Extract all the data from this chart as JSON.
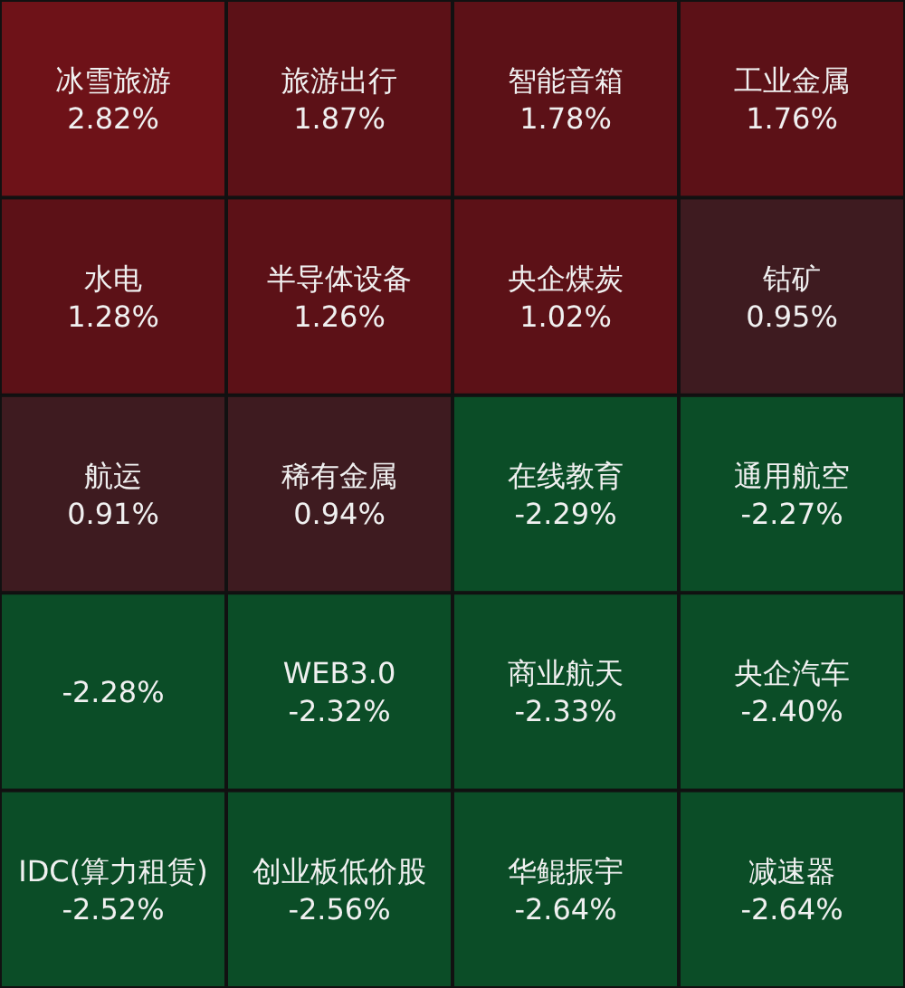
{
  "chart_data": {
    "type": "other",
    "categories": [
      "冰雪旅游",
      "旅游出行",
      "智能音箱",
      "工业金属",
      "水电",
      "半导体设备",
      "央企煤炭",
      "钴矿",
      "航运",
      "稀有金属",
      "在线教育",
      "通用航空",
      null,
      "WEB3.0",
      "商业航天",
      "央企汽车",
      "IDC(算力租赁)",
      "创业板低价股",
      "华鲲振宇",
      "减速器"
    ],
    "values": [
      2.82,
      1.87,
      1.78,
      1.76,
      1.28,
      1.26,
      1.02,
      0.95,
      0.91,
      0.94,
      -2.29,
      -2.27,
      -2.28,
      -2.32,
      -2.33,
      -2.4,
      -2.52,
      -2.56,
      -2.64,
      -2.64
    ],
    "value_labels": [
      "2.82%",
      "1.87%",
      "1.78%",
      "1.76%",
      "1.28%",
      "1.26%",
      "1.02%",
      "0.95%",
      "0.91%",
      "0.94%",
      "-2.29%",
      "-2.27%",
      "-2.28%",
      "-2.32%",
      "-2.33%",
      "-2.40%",
      "-2.52%",
      "-2.56%",
      "-2.64%",
      "-2.64%"
    ]
  }
}
